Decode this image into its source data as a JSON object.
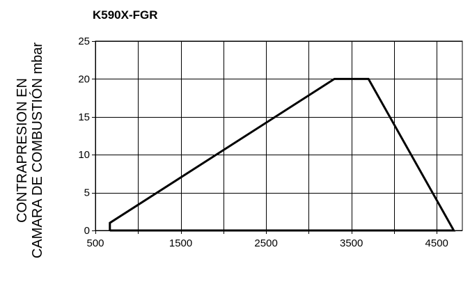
{
  "chart_data": {
    "type": "line",
    "title": "K590X-FGR",
    "ylabel_lines": [
      "CONTRAPRESION EN",
      "CAMARA DE COMBUSTIÓN mbar"
    ],
    "xlabel": "",
    "xlim": [
      500,
      4800
    ],
    "ylim": [
      0,
      25
    ],
    "x_ticks": [
      500,
      1500,
      2500,
      3500,
      4500
    ],
    "x_gridlines": [
      500,
      1000,
      1500,
      2000,
      2500,
      3000,
      3500,
      4000,
      4500
    ],
    "y_ticks": [
      0,
      5,
      10,
      15,
      20,
      25
    ],
    "grid": true,
    "legend": "none",
    "series": [
      {
        "x": [
          670,
          670,
          3300,
          3700,
          4700,
          670
        ],
        "y": [
          0,
          1,
          20,
          20,
          0,
          0
        ]
      }
    ],
    "colors": {
      "line": "#000000",
      "grid": "#000000",
      "background": "#ffffff"
    }
  }
}
